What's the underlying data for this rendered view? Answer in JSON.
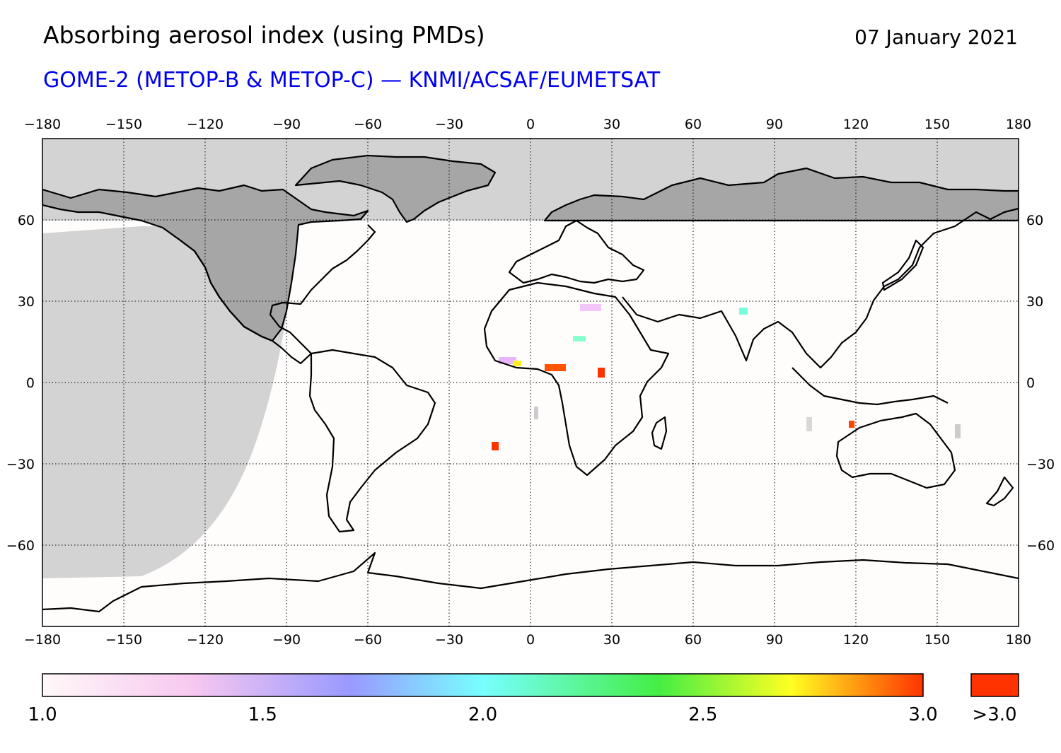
{
  "header": {
    "title": "Absorbing aerosol index (using PMDs)",
    "date": "07 January 2021",
    "subtitle": "GOME-2 (METOP-B & METOP-C) — KNMI/ACSAF/EUMETSAT"
  },
  "map": {
    "projection": "equirectangular",
    "lon_range": [
      -180,
      180
    ],
    "lat_range": [
      -90,
      90
    ],
    "lon_ticks": [
      "−180",
      "−150",
      "−120",
      "−90",
      "−60",
      "−30",
      "0",
      "30",
      "60",
      "90",
      "120",
      "150",
      "180"
    ],
    "lat_ticks": [
      "60",
      "30",
      "0",
      "−30",
      "−60"
    ],
    "lon_values": [
      -180,
      -150,
      -120,
      -90,
      -60,
      -30,
      0,
      30,
      60,
      90,
      120,
      150,
      180
    ],
    "lat_values": [
      60,
      30,
      0,
      -30,
      -60
    ],
    "no_data_color": "#d3d3d3",
    "land_no_data_color": "#a6a6a6",
    "coastline_color": "#000000"
  },
  "colorbar": {
    "tick_labels": [
      "1.0",
      "1.5",
      "2.0",
      "2.5",
      "3.0"
    ],
    "tick_values": [
      1.0,
      1.5,
      2.0,
      2.5,
      3.0
    ],
    "range": [
      1.0,
      3.0
    ],
    "over_label": ">3.0",
    "over_color": "#ff3300",
    "colors": [
      "#fff8f8",
      "#f7c8f0",
      "#9999ff",
      "#77ffff",
      "#44ee44",
      "#ffff22",
      "#ff3300"
    ]
  }
}
